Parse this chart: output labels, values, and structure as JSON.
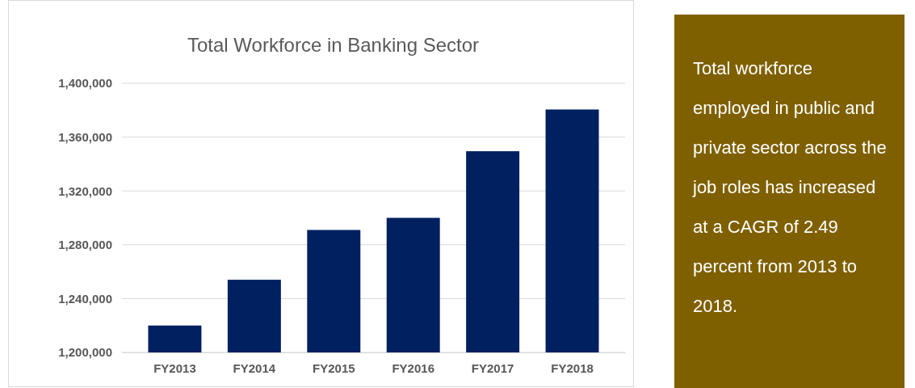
{
  "chart_data": [
    {
      "type": "bar",
      "title": "Total Workforce in Banking Sector",
      "categories": [
        "FY2013",
        "FY2014",
        "FY2015",
        "FY2016",
        "FY2017",
        "FY2018"
      ],
      "values": [
        1220000,
        1254000,
        1291000,
        1300000,
        1349500,
        1380500
      ],
      "color": "#002060",
      "ylim": [
        1200000,
        1400000
      ],
      "yticks": [
        {
          "value": 1200000,
          "label": "1,200,000"
        },
        {
          "value": 1240000,
          "label": "1,240,000"
        },
        {
          "value": 1280000,
          "label": "1,280,000"
        },
        {
          "value": 1320000,
          "label": "1,320,000"
        },
        {
          "value": 1360000,
          "label": "1,360,000"
        },
        {
          "value": 1400000,
          "label": "1,400,000"
        }
      ],
      "grid": "y"
    },
    {
      "type": "other",
      "annotations": [
        "Total workforce employed in public and private sector across the job roles has increased at a CAGR of 2.49 percent from 2013 to 2018."
      ]
    }
  ]
}
